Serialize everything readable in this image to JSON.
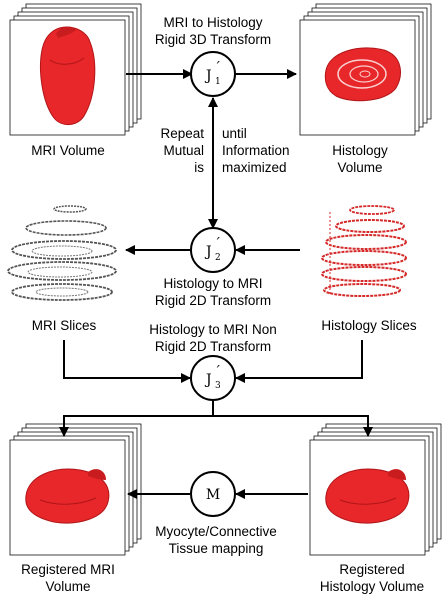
{
  "nodes": {
    "j1": {
      "letter": "J",
      "prime": "´",
      "sub": "1"
    },
    "j2": {
      "letter": "J",
      "prime": "´",
      "sub": "2"
    },
    "j3": {
      "letter": "J",
      "prime": "´",
      "sub": "3"
    },
    "m": {
      "letter": "M"
    }
  },
  "labels": {
    "mri_to_histology": [
      "MRI to Histology",
      "Rigid 3D Transform"
    ],
    "mri_volume": "MRI Volume",
    "histology_volume": [
      "Histology",
      "Volume"
    ],
    "repeat_left": [
      "Repeat",
      "Mutual",
      "is"
    ],
    "repeat_right": [
      "until",
      "Information",
      "maximized"
    ],
    "histology_to_mri_rigid": [
      "Histology to MRI",
      "Rigid 2D Transform"
    ],
    "mri_slices": "MRI Slices",
    "histology_slices": "Histology Slices",
    "histology_to_mri_nonrigid": [
      "Histology to MRI Non",
      "Rigid 2D Transform"
    ],
    "registered_mri_volume": [
      "Registered MRI",
      "Volume"
    ],
    "registered_histology_volume": [
      "Registered",
      "Histology Volume"
    ],
    "myocyte_mapping": [
      "Myocyte/Connective",
      "Tissue mapping"
    ]
  },
  "colors": {
    "tissue": "#e8272a",
    "tissue_dark": "#b01518",
    "slice_gray": "#555555"
  }
}
